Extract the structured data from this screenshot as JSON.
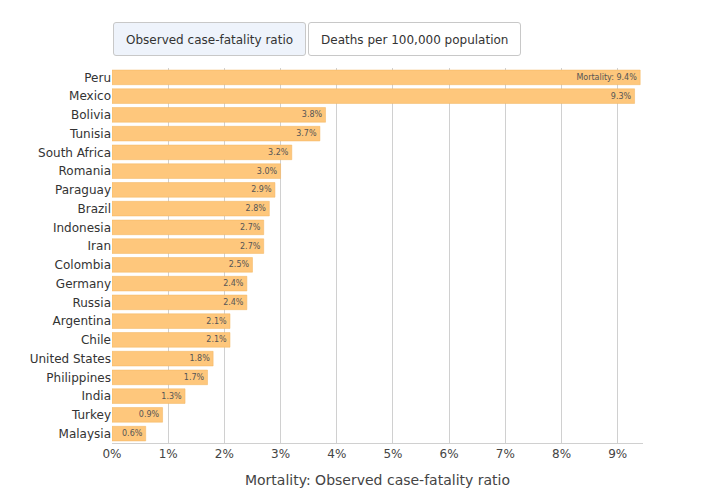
{
  "buttons": [
    "Observed case-fatality ratio",
    "Deaths per 100,000 population"
  ],
  "chart_data": {
    "type": "bar",
    "orientation": "horizontal",
    "x_label": "Mortality: Observed case-fatality ratio",
    "categories": [
      "Peru",
      "Mexico",
      "Bolivia",
      "Tunisia",
      "South Africa",
      "Romania",
      "Paraguay",
      "Brazil",
      "Indonesia",
      "Iran",
      "Colombia",
      "Germany",
      "Russia",
      "Argentina",
      "Chile",
      "United States",
      "Philippines",
      "India",
      "Turkey",
      "Malaysia"
    ],
    "values": [
      9.4,
      9.3,
      3.8,
      3.7,
      3.2,
      3.0,
      2.9,
      2.8,
      2.7,
      2.7,
      2.5,
      2.4,
      2.4,
      2.1,
      2.1,
      1.8,
      1.7,
      1.3,
      0.9,
      0.6
    ],
    "value_labels": [
      "Mortality: 9.4%",
      "9.3%",
      "3.8%",
      "3.7%",
      "3.2%",
      "3.0%",
      "2.9%",
      "2.8%",
      "2.7%",
      "2.7%",
      "2.5%",
      "2.4%",
      "2.4%",
      "2.1%",
      "2.1%",
      "1.8%",
      "1.7%",
      "1.3%",
      "0.9%",
      "0.6%"
    ],
    "data_labels": true,
    "color": "#fec77c",
    "xlim": [
      0,
      9.45
    ],
    "xticks": [
      {
        "value": 0,
        "label": "0%"
      },
      {
        "value": 1,
        "label": "1%"
      },
      {
        "value": 2,
        "label": "2%"
      },
      {
        "value": 3,
        "label": "3%"
      },
      {
        "value": 4,
        "label": "4%"
      },
      {
        "value": 5,
        "label": "5%"
      },
      {
        "value": 6,
        "label": "6%"
      },
      {
        "value": 7,
        "label": "7%"
      },
      {
        "value": 8,
        "label": "8%"
      },
      {
        "value": 9,
        "label": "9%"
      }
    ],
    "grid": true
  }
}
